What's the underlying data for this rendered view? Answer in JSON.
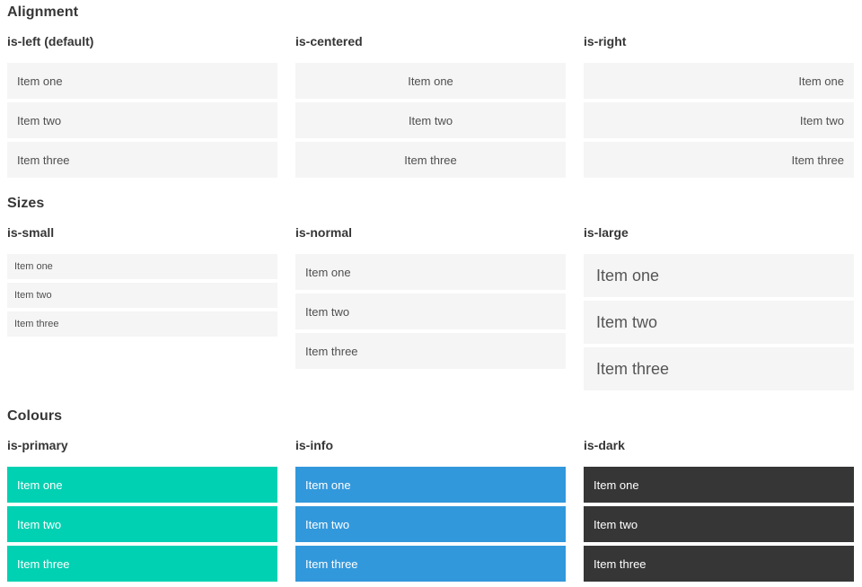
{
  "sections": [
    {
      "title": "Alignment",
      "groups": [
        {
          "label": "is-left (default)",
          "items": [
            "Item one",
            "Item two",
            "Item three"
          ]
        },
        {
          "label": "is-centered",
          "items": [
            "Item one",
            "Item two",
            "Item three"
          ]
        },
        {
          "label": "is-right",
          "items": [
            "Item one",
            "Item two",
            "Item three"
          ]
        }
      ]
    },
    {
      "title": "Sizes",
      "groups": [
        {
          "label": "is-small",
          "items": [
            "Item one",
            "Item two",
            "Item three"
          ]
        },
        {
          "label": "is-normal",
          "items": [
            "Item one",
            "Item two",
            "Item three"
          ]
        },
        {
          "label": "is-large",
          "items": [
            "Item one",
            "Item two",
            "Item three"
          ]
        }
      ]
    },
    {
      "title": "Colours",
      "groups": [
        {
          "label": "is-primary",
          "items": [
            "Item one",
            "Item two",
            "Item three"
          ]
        },
        {
          "label": "is-info",
          "items": [
            "Item one",
            "Item two",
            "Item three"
          ]
        },
        {
          "label": "is-dark",
          "items": [
            "Item one",
            "Item two",
            "Item three"
          ]
        }
      ]
    }
  ],
  "colors": {
    "primary": "#00d1b2",
    "info": "#3298dc",
    "dark": "#363636",
    "item_bg": "#f5f5f5",
    "heading_text": "#363636",
    "item_text": "#4f4f4f"
  }
}
